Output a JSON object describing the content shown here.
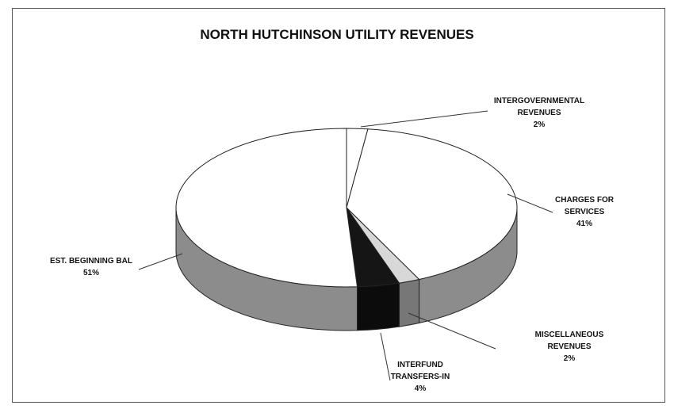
{
  "chart_data": {
    "type": "pie",
    "title": "NORTH HUTCHINSON UTILITY REVENUES",
    "categories": [
      "INTERGOVERNMENTAL REVENUES",
      "CHARGES FOR SERVICES",
      "MISCELLANEOUS REVENUES",
      "INTERFUND TRANSFERS-IN",
      "EST. BEGINNING BAL"
    ],
    "values": [
      2,
      41,
      2,
      4,
      51
    ],
    "value_labels": [
      "2%",
      "41%",
      "2%",
      "4%",
      "51%"
    ],
    "colors": [
      "#ffffff",
      "#ffffff",
      "#d8d8d8",
      "#151515",
      "#ffffff"
    ],
    "three_d": true
  }
}
